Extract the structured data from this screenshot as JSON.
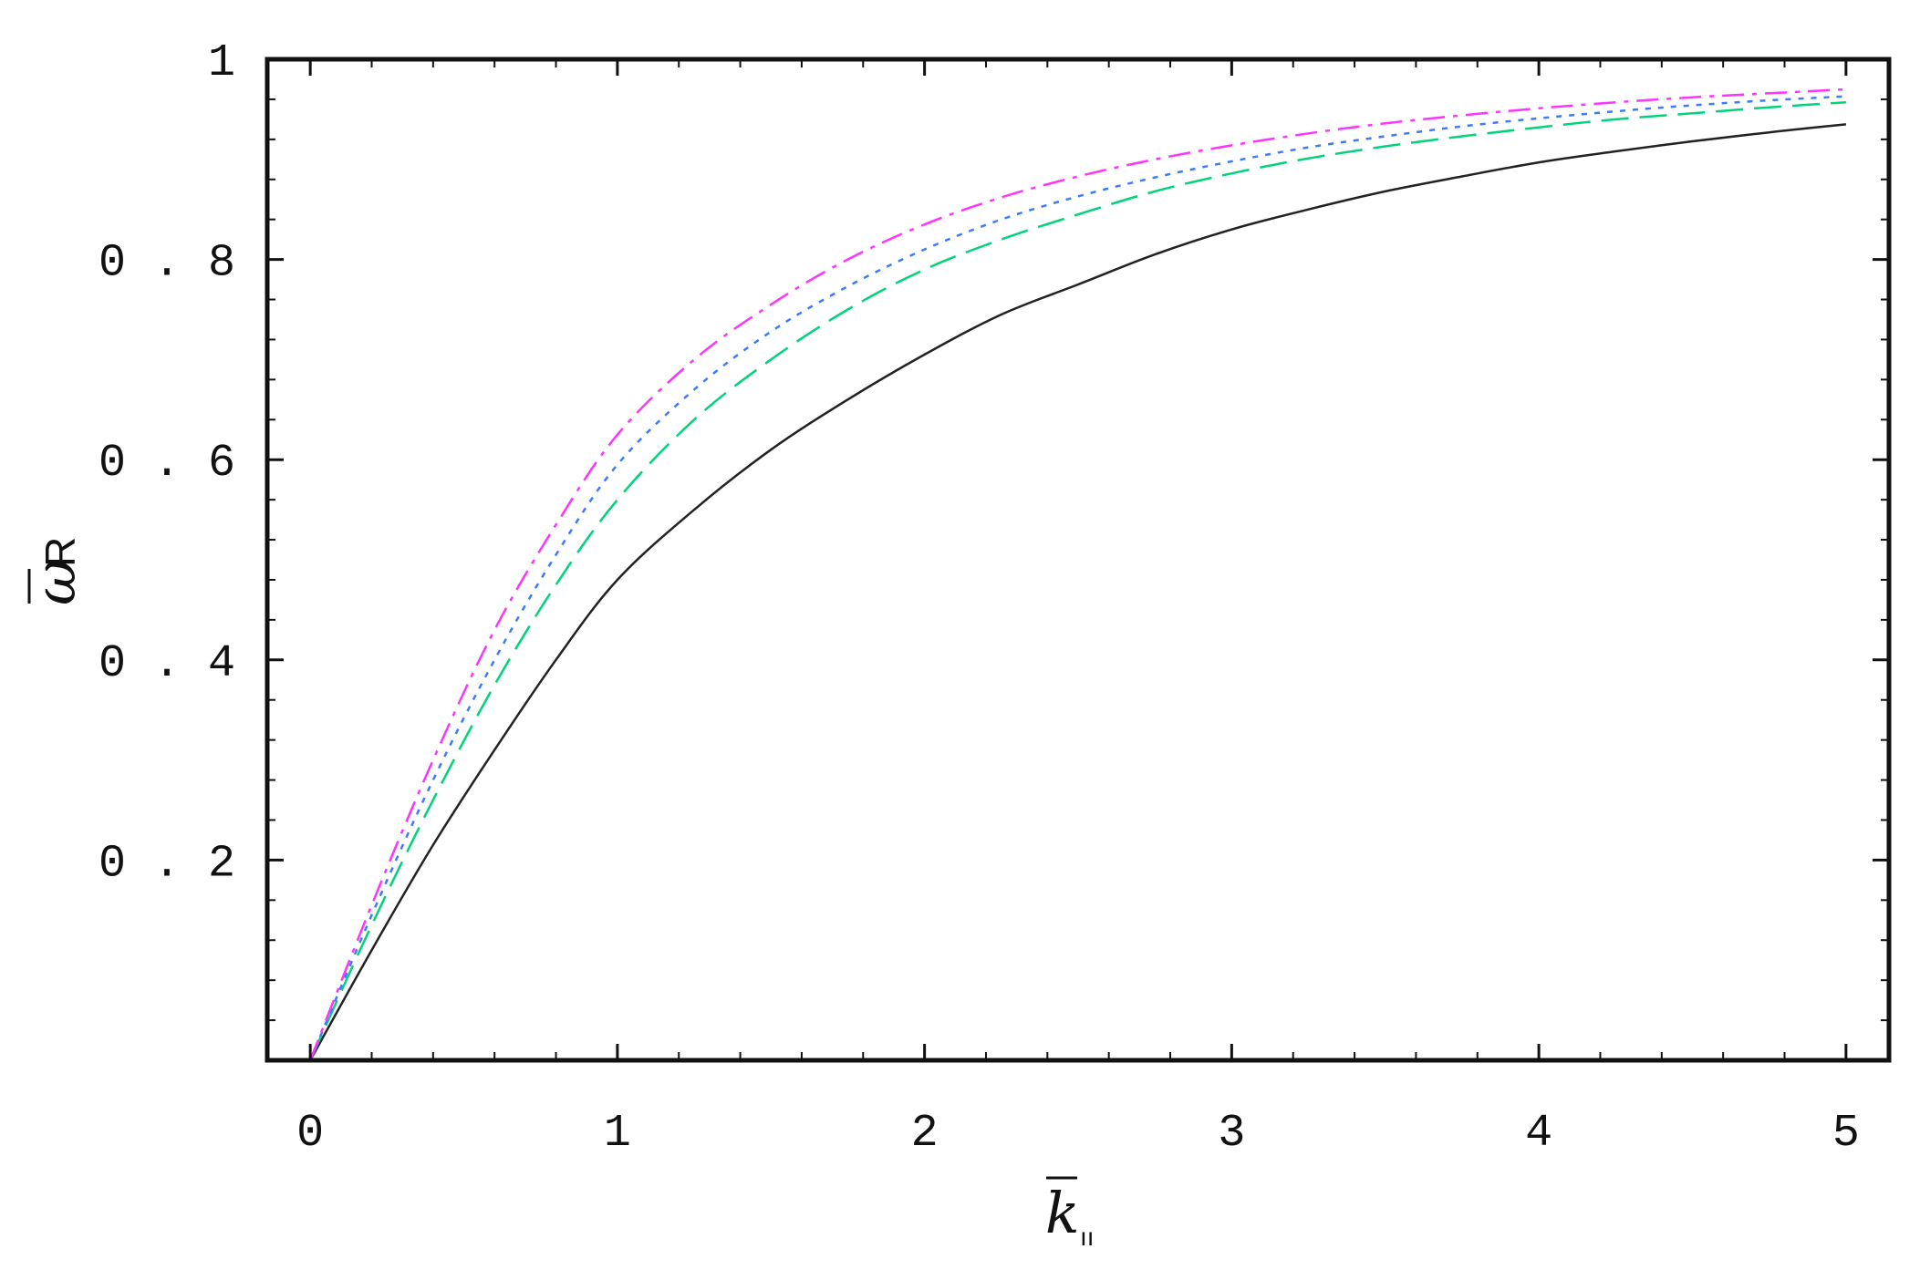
{
  "chart_data": {
    "type": "line",
    "xlabel": {
      "symbol": "k",
      "subscript": "ıı"
    },
    "ylabel": {
      "symbol": "ω",
      "subscript": "R"
    },
    "xlim": [
      -0.14,
      5.14
    ],
    "ylim": [
      0,
      1
    ],
    "x_ticks": [
      0,
      1,
      2,
      3,
      4,
      5
    ],
    "x_tick_labels": [
      "0",
      "1",
      "2",
      "3",
      "4",
      "5"
    ],
    "y_ticks": [
      0.2,
      0.4,
      0.6,
      0.8,
      1
    ],
    "y_tick_labels": [
      "0 . 2",
      "0 . 4",
      "0 . 6",
      "0 . 8",
      "1"
    ],
    "grid": false,
    "x": [
      0,
      0.2,
      0.4,
      0.6,
      0.8,
      1.0,
      1.25,
      1.5,
      1.75,
      2.0,
      2.25,
      2.5,
      2.75,
      3.0,
      3.25,
      3.5,
      3.75,
      4.0,
      4.25,
      4.5,
      4.75,
      5.0
    ],
    "series": [
      {
        "color": "#222222",
        "dash": "solid",
        "values": [
          0,
          0.11,
          0.215,
          0.31,
          0.4,
          0.48,
          0.55,
          0.61,
          0.66,
          0.705,
          0.745,
          0.775,
          0.805,
          0.83,
          0.85,
          0.868,
          0.883,
          0.897,
          0.908,
          0.918,
          0.927,
          0.935
        ]
      },
      {
        "color": "#00d47a",
        "dash": "long-dash",
        "values": [
          0,
          0.135,
          0.26,
          0.375,
          0.475,
          0.56,
          0.64,
          0.7,
          0.75,
          0.79,
          0.82,
          0.845,
          0.868,
          0.886,
          0.901,
          0.913,
          0.923,
          0.932,
          0.94,
          0.946,
          0.952,
          0.957
        ]
      },
      {
        "color": "#3b7bff",
        "dash": "dotted",
        "values": [
          0,
          0.145,
          0.28,
          0.4,
          0.505,
          0.595,
          0.67,
          0.728,
          0.773,
          0.81,
          0.84,
          0.863,
          0.882,
          0.898,
          0.912,
          0.923,
          0.933,
          0.941,
          0.948,
          0.954,
          0.959,
          0.963
        ]
      },
      {
        "color": "#ff33ff",
        "dash": "dash-dot",
        "values": [
          0,
          0.155,
          0.3,
          0.43,
          0.535,
          0.625,
          0.7,
          0.755,
          0.8,
          0.835,
          0.862,
          0.883,
          0.9,
          0.914,
          0.926,
          0.936,
          0.944,
          0.951,
          0.957,
          0.962,
          0.966,
          0.97
        ]
      }
    ]
  }
}
